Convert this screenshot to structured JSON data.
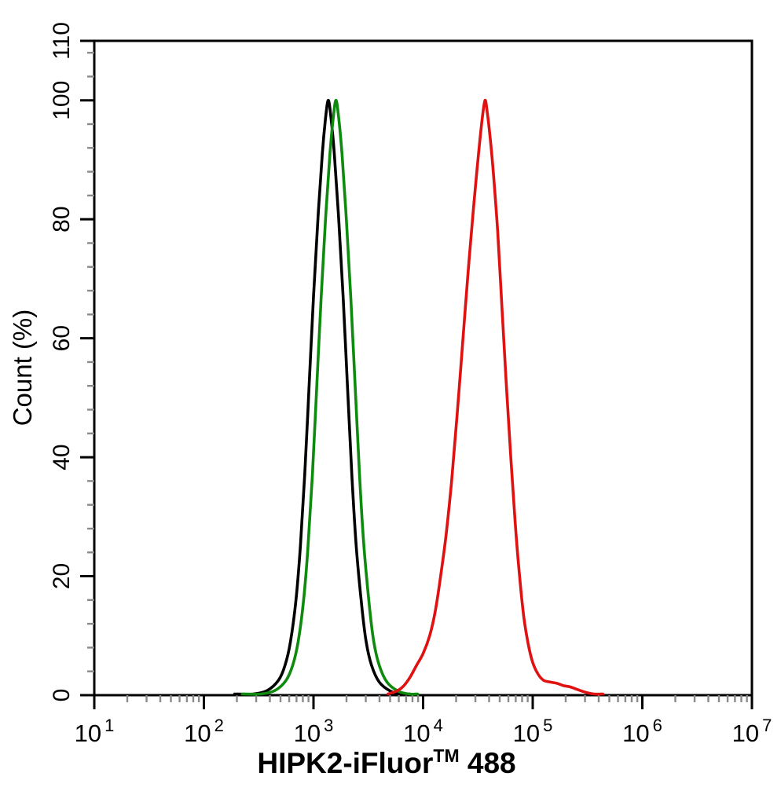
{
  "figure": {
    "kind": "flow-cytometry-overlay-histogram",
    "background": "#ffffff"
  },
  "chart_data": {
    "type": "line",
    "title": "",
    "xlabel": "HIPK2-iFluor™ 488",
    "xlabel_parts": {
      "text": "HIPK2-iFluor",
      "superscript": "TM",
      "suffix": "488"
    },
    "ylabel": "Count (%)",
    "x_scale": "log10",
    "xlim_log": [
      1,
      7
    ],
    "ylim": [
      0,
      110
    ],
    "x_major_tick_exponents": [
      1,
      2,
      3,
      4,
      5,
      6,
      7
    ],
    "x_tick_base": "10",
    "x_minor_tick_multiples": [
      2,
      3,
      4,
      5,
      6,
      7,
      8,
      9
    ],
    "y_major_ticks": [
      0,
      20,
      40,
      60,
      80,
      100,
      110
    ],
    "y_major_tick_labels": [
      "0",
      "20",
      "40",
      "60",
      "80",
      "100",
      "110"
    ],
    "y_minor_tick_step": 4,
    "grid": false,
    "legend": "none",
    "axis_color": "#000000",
    "minor_tick_color": "#8a8a8a",
    "series": [
      {
        "name": "black-curve",
        "color": "#000000",
        "peak_x": 1400,
        "peak_y_pct": 100,
        "points_log_pct": [
          [
            2.28,
            0
          ],
          [
            2.45,
            0.2
          ],
          [
            2.58,
            0.8
          ],
          [
            2.68,
            2.5
          ],
          [
            2.74,
            5
          ],
          [
            2.79,
            9
          ],
          [
            2.84,
            16
          ],
          [
            2.88,
            25
          ],
          [
            2.92,
            37
          ],
          [
            2.96,
            52
          ],
          [
            3.0,
            67
          ],
          [
            3.04,
            80
          ],
          [
            3.08,
            91
          ],
          [
            3.11,
            97
          ],
          [
            3.135,
            100
          ],
          [
            3.16,
            97
          ],
          [
            3.19,
            91
          ],
          [
            3.23,
            80
          ],
          [
            3.27,
            67
          ],
          [
            3.31,
            52
          ],
          [
            3.35,
            37
          ],
          [
            3.39,
            25
          ],
          [
            3.44,
            15
          ],
          [
            3.48,
            9
          ],
          [
            3.53,
            5
          ],
          [
            3.6,
            2.2
          ],
          [
            3.7,
            0.7
          ],
          [
            3.8,
            0.2
          ],
          [
            3.88,
            0
          ]
        ]
      },
      {
        "name": "green-curve",
        "color": "#0e8b0e",
        "peak_x": 1650,
        "peak_y_pct": 100,
        "points_log_pct": [
          [
            2.35,
            0
          ],
          [
            2.52,
            0.2
          ],
          [
            2.65,
            0.8
          ],
          [
            2.75,
            2.5
          ],
          [
            2.81,
            5
          ],
          [
            2.86,
            9
          ],
          [
            2.91,
            16
          ],
          [
            2.95,
            25
          ],
          [
            2.99,
            37
          ],
          [
            3.03,
            52
          ],
          [
            3.07,
            67
          ],
          [
            3.11,
            80
          ],
          [
            3.15,
            91
          ],
          [
            3.18,
            97
          ],
          [
            3.205,
            100
          ],
          [
            3.23,
            97
          ],
          [
            3.26,
            91
          ],
          [
            3.3,
            80
          ],
          [
            3.34,
            67
          ],
          [
            3.38,
            52
          ],
          [
            3.42,
            37
          ],
          [
            3.46,
            25
          ],
          [
            3.51,
            15
          ],
          [
            3.55,
            9
          ],
          [
            3.6,
            5
          ],
          [
            3.67,
            2.2
          ],
          [
            3.77,
            0.7
          ],
          [
            3.87,
            0.2
          ],
          [
            3.95,
            0
          ]
        ]
      },
      {
        "name": "red-curve",
        "color": "#e01111",
        "peak_x": 37000,
        "peak_y_pct": 100,
        "points_log_pct": [
          [
            3.68,
            0
          ],
          [
            3.76,
            0.7
          ],
          [
            3.82,
            1.5
          ],
          [
            3.88,
            3
          ],
          [
            3.94,
            5
          ],
          [
            4.0,
            7
          ],
          [
            4.06,
            10
          ],
          [
            4.11,
            14
          ],
          [
            4.16,
            20
          ],
          [
            4.21,
            27
          ],
          [
            4.26,
            36
          ],
          [
            4.31,
            47
          ],
          [
            4.36,
            59
          ],
          [
            4.41,
            71
          ],
          [
            4.46,
            82
          ],
          [
            4.5,
            90
          ],
          [
            4.54,
            97
          ],
          [
            4.565,
            100
          ],
          [
            4.585,
            98
          ],
          [
            4.61,
            94
          ],
          [
            4.64,
            88
          ],
          [
            4.68,
            78
          ],
          [
            4.72,
            65
          ],
          [
            4.76,
            52
          ],
          [
            4.8,
            40
          ],
          [
            4.84,
            29
          ],
          [
            4.88,
            20
          ],
          [
            4.92,
            13
          ],
          [
            4.96,
            8.5
          ],
          [
            5.0,
            5.5
          ],
          [
            5.05,
            3.5
          ],
          [
            5.1,
            2.5
          ],
          [
            5.16,
            2.2
          ],
          [
            5.22,
            2.0
          ],
          [
            5.28,
            1.6
          ],
          [
            5.34,
            1.4
          ],
          [
            5.4,
            1.0
          ],
          [
            5.48,
            0.5
          ],
          [
            5.56,
            0.2
          ],
          [
            5.64,
            0
          ]
        ]
      }
    ]
  }
}
